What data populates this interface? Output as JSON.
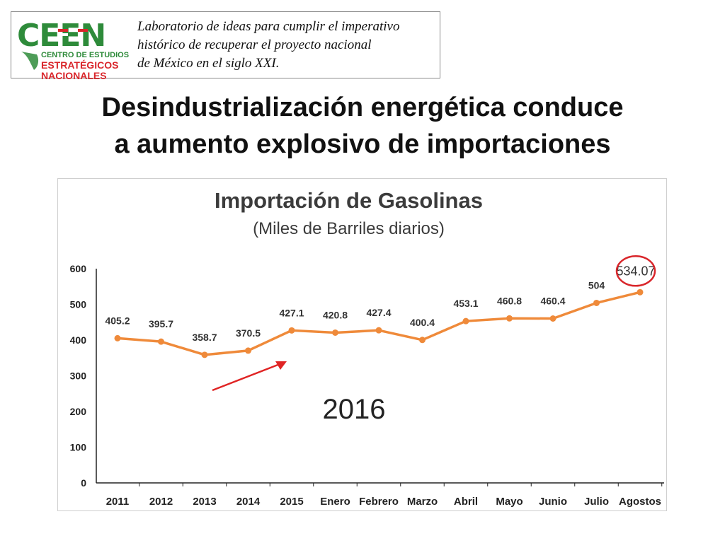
{
  "logo": {
    "name": "CEEN",
    "line1": "CENTRO DE ESTUDIOS",
    "line2": "ESTRATÉGICOS",
    "line3": "NACIONALES",
    "tagline": [
      "Laboratorio de ideas para cumplir el imperativo",
      "histórico de recuperar el proyecto nacional",
      "de México en el siglo XXI."
    ]
  },
  "slide": {
    "title_line1": "Desindustrialización energética conduce",
    "title_line2": "a aumento explosivo de importaciones"
  },
  "chart_data": {
    "type": "line",
    "title": "Importación de Gasolinas",
    "subtitle": "(Miles de Barriles  diarios)",
    "categories": [
      "2011",
      "2012",
      "2013",
      "2014",
      "2015",
      "Enero",
      "Febrero",
      "Marzo",
      "Abril",
      "Mayo",
      "Junio",
      "Julio",
      "Agostos"
    ],
    "series": [
      {
        "values": [
          405.2,
          395.7,
          358.7,
          370.5,
          427.1,
          420.8,
          427.4,
          400.4,
          453.1,
          460.8,
          460.4,
          504,
          534.07
        ],
        "labels": [
          "405.2",
          "395.7",
          "358.7",
          "370.5",
          "427.1",
          "420.8",
          "427.4",
          "400.4",
          "453.1",
          "460.8",
          "460.4",
          "504",
          "534.07"
        ],
        "color": "#ef8a3a"
      }
    ],
    "ylim": [
      0,
      600
    ],
    "yticks": [
      "0",
      "100",
      "200",
      "300",
      "400",
      "500",
      "600"
    ],
    "grid": false,
    "legend": "none",
    "annotations": {
      "year_label": "2016",
      "highlight": "534.07",
      "highlight_color": "#d9262b",
      "arrow_color": "#e02424"
    }
  }
}
